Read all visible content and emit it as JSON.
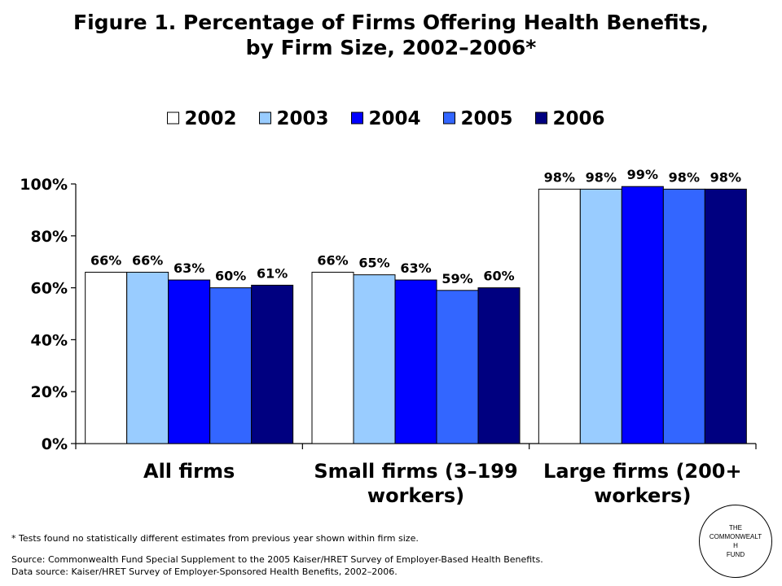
{
  "title": {
    "line1": "Figure 1. Percentage of Firms Offering Health Benefits,",
    "line2": "by Firm Size, 2002–2006*"
  },
  "chart_data": {
    "type": "bar",
    "categories": [
      [
        "All firms"
      ],
      [
        "Small firms (3–199",
        "workers)"
      ],
      [
        "Large firms (200+",
        "workers)"
      ]
    ],
    "series": [
      {
        "name": "2002",
        "color": "#ffffff",
        "values": [
          66,
          66,
          98
        ],
        "labels": [
          "66%",
          "66%",
          "98%"
        ]
      },
      {
        "name": "2003",
        "color": "#99ccff",
        "values": [
          66,
          65,
          98
        ],
        "labels": [
          "66%",
          "65%",
          "98%"
        ]
      },
      {
        "name": "2004",
        "color": "#0000ff",
        "values": [
          63,
          63,
          99
        ],
        "labels": [
          "63%",
          "63%",
          "99%"
        ]
      },
      {
        "name": "2005",
        "color": "#3366ff",
        "values": [
          60,
          59,
          98
        ],
        "labels": [
          "60%",
          "59%",
          "98%"
        ]
      },
      {
        "name": "2006",
        "color": "#000080",
        "values": [
          61,
          60,
          98
        ],
        "labels": [
          "61%",
          "60%",
          "98%"
        ]
      }
    ],
    "ylim": [
      0,
      100
    ],
    "yticks": [
      "0%",
      "20%",
      "40%",
      "60%",
      "80%",
      "100%"
    ],
    "legend_position": "top-center",
    "grid": false
  },
  "footnotes": {
    "note": "* Tests found no statistically different estimates from previous year shown within firm size.",
    "source": "Source: Commonwealth Fund Special Supplement to the 2005 Kaiser/HRET Survey of Employer-Based Health Benefits.",
    "data_source": "Data source: Kaiser/HRET Survey of Employer-Sponsored Health Benefits, 2002–2006."
  },
  "logo": {
    "line1": "THE",
    "line2": "COMMONWEALT",
    "line3": "H",
    "line4": "FUND"
  }
}
